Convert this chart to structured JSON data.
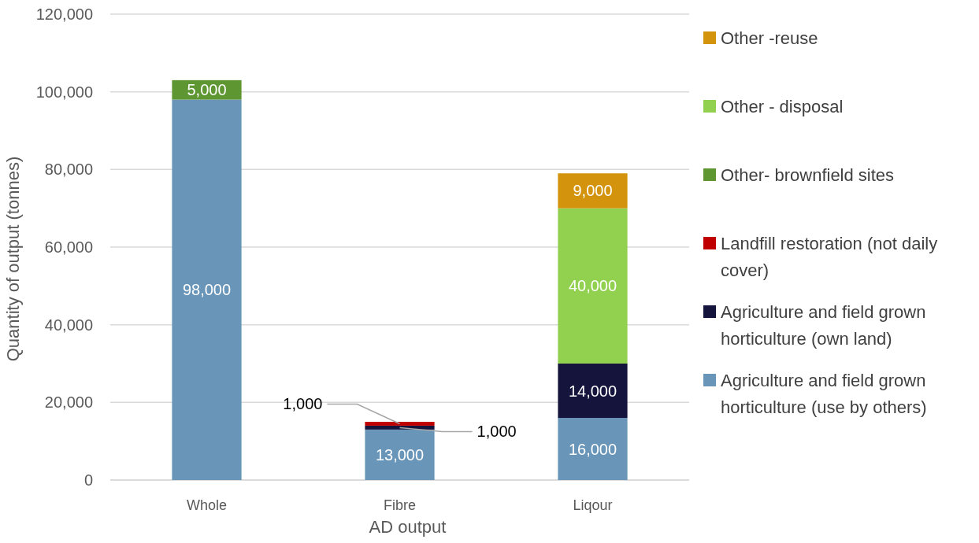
{
  "chart_data": {
    "type": "bar",
    "stacked": true,
    "xlabel": "AD output",
    "ylabel": "Quantity of output (tonnes)",
    "categories": [
      "Whole",
      "Fibre",
      "Liqour"
    ],
    "ylim": [
      0,
      120000
    ],
    "yticks": [
      {
        "value": 0,
        "label": "0"
      },
      {
        "value": 20000,
        "label": "20,000"
      },
      {
        "value": 40000,
        "label": "40,000"
      },
      {
        "value": 60000,
        "label": "60,000"
      },
      {
        "value": 80000,
        "label": "80,000"
      },
      {
        "value": 100000,
        "label": "100,000"
      },
      {
        "value": 120000,
        "label": "120,000"
      }
    ],
    "grid": "y",
    "legend": "right",
    "series": [
      {
        "name": "Agriculture and field grown horticulture (use by others)",
        "color": "#6895b8",
        "values": [
          98000,
          13000,
          16000
        ],
        "value_labels": [
          "98,000",
          "13,000",
          "16,000"
        ]
      },
      {
        "name": "Agriculture and field grown horticulture (own land)",
        "color": "#14143c",
        "values": [
          0,
          1000,
          14000
        ],
        "value_labels": [
          null,
          "1,000",
          "14,000"
        ]
      },
      {
        "name": "Landfill restoration (not daily cover)",
        "color": "#c00000",
        "values": [
          0,
          1000,
          0
        ],
        "value_labels": [
          null,
          "1,000",
          null
        ]
      },
      {
        "name": "Other- brownfield sites",
        "color": "#5e9632",
        "values": [
          5000,
          0,
          0
        ],
        "value_labels": [
          "5,000",
          null,
          null
        ]
      },
      {
        "name": "Other - disposal",
        "color": "#92d050",
        "values": [
          0,
          0,
          40000
        ],
        "value_labels": [
          null,
          null,
          "40,000"
        ]
      },
      {
        "name": "Other -reuse",
        "color": "#d4930c",
        "values": [
          0,
          0,
          9000
        ],
        "value_labels": [
          null,
          null,
          "9,000"
        ]
      }
    ]
  }
}
